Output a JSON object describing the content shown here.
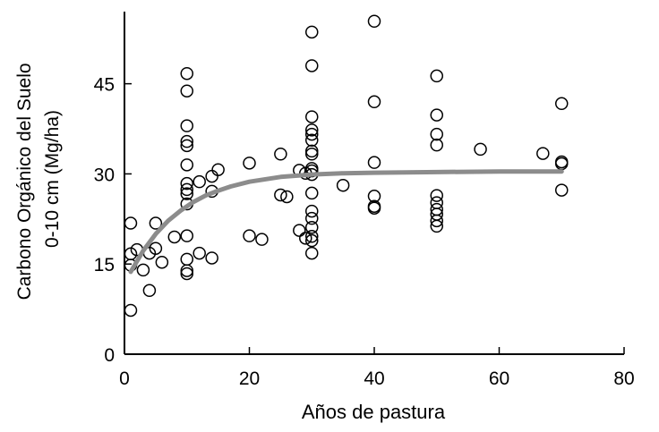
{
  "chart_data": {
    "type": "scatter",
    "title": "",
    "xlabel": "Años de pastura",
    "ylabel_lines": [
      "Carbono Orgánico del Suelo",
      "0-10 cm (Mg/ha)"
    ],
    "xlim": [
      0,
      80
    ],
    "ylim": [
      0,
      57
    ],
    "xticks": [
      0,
      20,
      40,
      60,
      80
    ],
    "yticks": [
      0,
      15,
      30,
      45
    ],
    "grid": false,
    "legend": "none",
    "colors": {
      "points": "#000000",
      "fit_line": "#8c8c8c",
      "axes": "#000000"
    },
    "points": [
      [
        1,
        21.8
      ],
      [
        1,
        16.7
      ],
      [
        1,
        14.8
      ],
      [
        1,
        7.3
      ],
      [
        2,
        17.4
      ],
      [
        3,
        14.0
      ],
      [
        4,
        10.6
      ],
      [
        4,
        16.8
      ],
      [
        5,
        17.6
      ],
      [
        5,
        21.8
      ],
      [
        6,
        15.3
      ],
      [
        8,
        19.5
      ],
      [
        10,
        46.7
      ],
      [
        10,
        43.8
      ],
      [
        10,
        38.0
      ],
      [
        10,
        35.4
      ],
      [
        10,
        34.7
      ],
      [
        10,
        31.5
      ],
      [
        10,
        28.4
      ],
      [
        10,
        27.4
      ],
      [
        10,
        26.7
      ],
      [
        10,
        25.0
      ],
      [
        10,
        19.7
      ],
      [
        10,
        15.8
      ],
      [
        10,
        13.9
      ],
      [
        10,
        13.4
      ],
      [
        12,
        28.7
      ],
      [
        12,
        16.8
      ],
      [
        14,
        29.6
      ],
      [
        14,
        27.1
      ],
      [
        14,
        16.0
      ],
      [
        15,
        30.7
      ],
      [
        20,
        31.8
      ],
      [
        20,
        19.7
      ],
      [
        22,
        19.1
      ],
      [
        25,
        33.3
      ],
      [
        25,
        26.5
      ],
      [
        26,
        26.2
      ],
      [
        28,
        30.6
      ],
      [
        28,
        20.6
      ],
      [
        29,
        19.3
      ],
      [
        29,
        30.1
      ],
      [
        30,
        53.6
      ],
      [
        30,
        48.0
      ],
      [
        30,
        39.5
      ],
      [
        30,
        37.3
      ],
      [
        30,
        36.6
      ],
      [
        30,
        35.6
      ],
      [
        30,
        33.8
      ],
      [
        30,
        33.3
      ],
      [
        30,
        30.9
      ],
      [
        30,
        30.5
      ],
      [
        30,
        29.9
      ],
      [
        30,
        26.8
      ],
      [
        30,
        23.8
      ],
      [
        30,
        22.6
      ],
      [
        30,
        21.1
      ],
      [
        30,
        19.6
      ],
      [
        30,
        18.9
      ],
      [
        30,
        16.8
      ],
      [
        35,
        28.1
      ],
      [
        40,
        55.4
      ],
      [
        40,
        42.0
      ],
      [
        40,
        31.9
      ],
      [
        40,
        26.3
      ],
      [
        40,
        24.6
      ],
      [
        40,
        24.3
      ],
      [
        50,
        46.3
      ],
      [
        50,
        39.8
      ],
      [
        50,
        36.6
      ],
      [
        50,
        34.8
      ],
      [
        50,
        26.4
      ],
      [
        50,
        25.2
      ],
      [
        50,
        24.1
      ],
      [
        50,
        23.3
      ],
      [
        50,
        22.2
      ],
      [
        50,
        21.3
      ],
      [
        57,
        34.1
      ],
      [
        67,
        33.4
      ],
      [
        70,
        41.7
      ],
      [
        70,
        32.0
      ],
      [
        70,
        31.7
      ],
      [
        70,
        27.3
      ]
    ],
    "fit_curve": {
      "label": "",
      "x": [
        1,
        3,
        5,
        7,
        9,
        11,
        13,
        15,
        17,
        20,
        25,
        30,
        35,
        40,
        50,
        60,
        70
      ],
      "y": [
        13.7,
        17.2,
        20.0,
        22.2,
        23.9,
        25.3,
        26.4,
        27.2,
        27.9,
        28.7,
        29.5,
        29.9,
        30.1,
        30.2,
        30.3,
        30.4,
        30.4
      ]
    }
  }
}
